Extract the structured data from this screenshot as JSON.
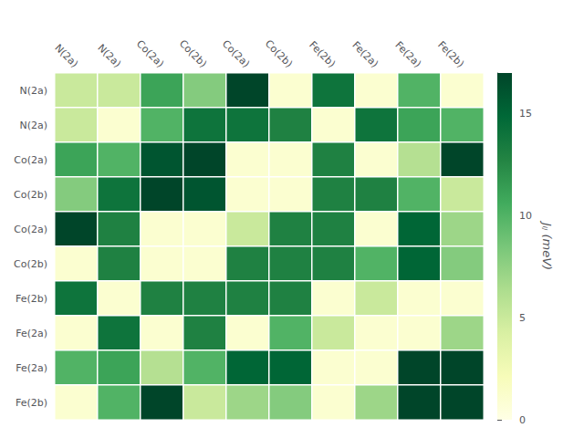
{
  "chart_data": {
    "type": "heatmap",
    "categories": [
      "N(2a)",
      "N(2a)",
      "Co(2a)",
      "Co(2b)",
      "Co(2a)",
      "Co(2b)",
      "Fe(2b)",
      "Fe(2a)",
      "Fe(2a)",
      "Fe(2b)"
    ],
    "values": [
      [
        5,
        5,
        11,
        8,
        17,
        1,
        14,
        1,
        10,
        1
      ],
      [
        5,
        1,
        10,
        14,
        14,
        13,
        1,
        14,
        11,
        10
      ],
      [
        11,
        10,
        16,
        17,
        1,
        1,
        13,
        1,
        6,
        17
      ],
      [
        8,
        14,
        17,
        16,
        1,
        1,
        13,
        13,
        10,
        5
      ],
      [
        17,
        13,
        1,
        1,
        5,
        13,
        13,
        1,
        15,
        7
      ],
      [
        1,
        13,
        1,
        1,
        13,
        13,
        13,
        10,
        15,
        8
      ],
      [
        14,
        1,
        13,
        13,
        13,
        13,
        1,
        5,
        1,
        1
      ],
      [
        1,
        14,
        1,
        13,
        1,
        10,
        5,
        1,
        1,
        7
      ],
      [
        10,
        11,
        6,
        10,
        15,
        15,
        1,
        1,
        17,
        17
      ],
      [
        1,
        10,
        17,
        5,
        7,
        8,
        1,
        7,
        17,
        17
      ]
    ],
    "colorbar_label": "Jᵢⱼ (meV)",
    "colorbar_range": [
      0,
      17
    ],
    "colorbar_ticks": [
      0,
      5,
      10,
      15
    ],
    "colors": [
      "#ffffe5",
      "#f7fcb9",
      "#d9f0a3",
      "#addd8e",
      "#78c679",
      "#41ab5d",
      "#238443",
      "#006837",
      "#004529"
    ]
  }
}
